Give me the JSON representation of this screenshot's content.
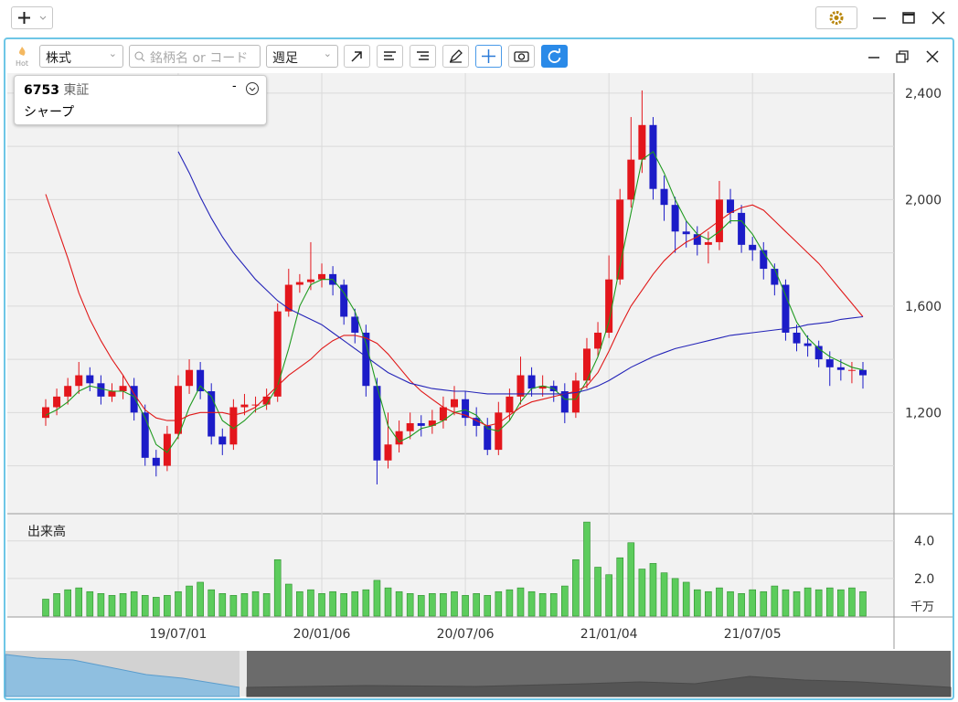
{
  "toolbar": {
    "hot": "Hot",
    "market": "株式",
    "search_placeholder": "銘柄名 or コード",
    "period": "週足"
  },
  "info": {
    "code": "6753",
    "exchange": "東証",
    "name": "シャープ",
    "dash": "-"
  },
  "chart_data": {
    "type": "candlestick",
    "categories": [
      null,
      null,
      null,
      null,
      null,
      null,
      null,
      null,
      null,
      null,
      null,
      null,
      "19/07/01",
      null,
      null,
      null,
      null,
      null,
      null,
      null,
      null,
      null,
      null,
      null,
      null,
      "20/01/06",
      null,
      null,
      null,
      null,
      null,
      null,
      null,
      null,
      null,
      null,
      null,
      null,
      "20/07/06",
      null,
      null,
      null,
      null,
      null,
      null,
      null,
      null,
      null,
      null,
      null,
      null,
      "21/01/04",
      null,
      null,
      null,
      null,
      null,
      null,
      null,
      null,
      null,
      null,
      null,
      null,
      "21/07/05",
      null,
      null,
      null,
      null,
      null,
      null,
      null,
      null,
      null,
      null
    ],
    "open": [
      1180,
      1220,
      1260,
      1300,
      1340,
      1310,
      1260,
      1280,
      1300,
      1200,
      1030,
      1000,
      1120,
      1300,
      1360,
      1280,
      1110,
      1080,
      1220,
      1230,
      1230,
      1260,
      1580,
      1680,
      1690,
      1700,
      1720,
      1680,
      1560,
      1500,
      1300,
      1020,
      1080,
      1130,
      1160,
      1150,
      1170,
      1220,
      1250,
      1180,
      1150,
      1060,
      1200,
      1260,
      1340,
      1290,
      1300,
      1280,
      1200,
      1320,
      1440,
      1500,
      1700,
      2000,
      2150,
      2280,
      2040,
      1980,
      1880,
      1870,
      1830,
      1840,
      2000,
      1950,
      1830,
      1810,
      1740,
      1680,
      1500,
      1460,
      1450,
      1400,
      1370,
      1360,
      1360
    ],
    "high": [
      1250,
      1290,
      1330,
      1390,
      1370,
      1340,
      1310,
      1340,
      1330,
      1230,
      1060,
      1150,
      1340,
      1400,
      1390,
      1310,
      1140,
      1250,
      1270,
      1260,
      1290,
      1610,
      1740,
      1720,
      1840,
      1760,
      1750,
      1700,
      1590,
      1530,
      1330,
      1200,
      1170,
      1200,
      1190,
      1210,
      1260,
      1300,
      1280,
      1220,
      1180,
      1240,
      1290,
      1410,
      1370,
      1340,
      1320,
      1310,
      1350,
      1480,
      1540,
      1790,
      2040,
      2310,
      2410,
      2310,
      2090,
      2010,
      1920,
      1900,
      1880,
      2070,
      2040,
      1980,
      1860,
      1840,
      1760,
      1700,
      1530,
      1490,
      1470,
      1430,
      1400,
      1390,
      1390
    ],
    "low": [
      1150,
      1190,
      1230,
      1270,
      1280,
      1230,
      1240,
      1250,
      1170,
      1000,
      960,
      980,
      1100,
      1270,
      1250,
      1080,
      1040,
      1060,
      1190,
      1200,
      1210,
      1240,
      1560,
      1650,
      1660,
      1670,
      1640,
      1530,
      1460,
      1260,
      930,
      990,
      1050,
      1100,
      1110,
      1120,
      1140,
      1190,
      1150,
      1110,
      1040,
      1040,
      1170,
      1230,
      1260,
      1260,
      1240,
      1160,
      1180,
      1290,
      1410,
      1480,
      1680,
      1970,
      2100,
      2000,
      1920,
      1800,
      1820,
      1790,
      1760,
      1810,
      1910,
      1800,
      1770,
      1700,
      1640,
      1470,
      1430,
      1410,
      1370,
      1300,
      1320,
      1310,
      1290
    ],
    "close": [
      1220,
      1260,
      1300,
      1340,
      1310,
      1260,
      1280,
      1300,
      1200,
      1030,
      1000,
      1120,
      1300,
      1360,
      1280,
      1110,
      1080,
      1220,
      1230,
      1230,
      1260,
      1580,
      1680,
      1690,
      1700,
      1720,
      1680,
      1560,
      1500,
      1300,
      1020,
      1080,
      1130,
      1160,
      1150,
      1170,
      1220,
      1250,
      1180,
      1150,
      1060,
      1200,
      1260,
      1340,
      1290,
      1300,
      1280,
      1200,
      1320,
      1440,
      1500,
      1700,
      2000,
      2150,
      2280,
      2040,
      1980,
      1880,
      1870,
      1830,
      1840,
      2000,
      1950,
      1830,
      1810,
      1740,
      1680,
      1500,
      1460,
      1450,
      1400,
      1370,
      1360,
      1360,
      1340
    ],
    "up_color": "#e3161c",
    "down_color": "#1c1cc8",
    "ylim": [
      820,
      2475
    ],
    "yticks": [
      {
        "value": 1200,
        "label": "1,200"
      },
      {
        "value": 1600,
        "label": "1,600"
      },
      {
        "value": 2000,
        "label": "2,000"
      },
      {
        "value": 2400,
        "label": "2,400"
      }
    ],
    "minor_yticks": [
      1000,
      1400,
      1800,
      2200
    ],
    "grid": true,
    "moving_averages": [
      {
        "color": "#1f9a1f",
        "values": [
          1190,
          1210,
          1240,
          1280,
          1300,
          1290,
          1280,
          1280,
          1260,
          1180,
          1080,
          1050,
          1110,
          1220,
          1300,
          1260,
          1170,
          1140,
          1170,
          1210,
          1230,
          1300,
          1440,
          1600,
          1680,
          1700,
          1700,
          1650,
          1580,
          1460,
          1300,
          1150,
          1090,
          1110,
          1140,
          1150,
          1170,
          1200,
          1210,
          1190,
          1140,
          1130,
          1170,
          1240,
          1290,
          1300,
          1290,
          1250,
          1250,
          1320,
          1410,
          1540,
          1750,
          1950,
          2150,
          2180,
          2100,
          2000,
          1920,
          1870,
          1850,
          1880,
          1920,
          1920,
          1870,
          1800,
          1740,
          1640,
          1540,
          1480,
          1440,
          1410,
          1390,
          1370,
          1360
        ]
      },
      {
        "color": "#e01818",
        "values": [
          2020,
          1900,
          1780,
          1650,
          1550,
          1470,
          1400,
          1340,
          1270,
          1210,
          1180,
          1170,
          1170,
          1190,
          1200,
          1200,
          1200,
          1190,
          1200,
          1220,
          1260,
          1300,
          1340,
          1370,
          1400,
          1440,
          1470,
          1490,
          1490,
          1480,
          1460,
          1420,
          1370,
          1320,
          1280,
          1250,
          1220,
          1200,
          1190,
          1170,
          1150,
          1160,
          1190,
          1220,
          1240,
          1250,
          1260,
          1270,
          1280,
          1300,
          1350,
          1430,
          1520,
          1600,
          1660,
          1720,
          1770,
          1810,
          1840,
          1860,
          1890,
          1920,
          1950,
          1970,
          1980,
          1960,
          1920,
          1880,
          1840,
          1800,
          1760,
          1710,
          1660,
          1610,
          1560
        ]
      },
      {
        "color": "#2424b8",
        "values": [
          null,
          null,
          null,
          null,
          null,
          null,
          null,
          null,
          null,
          null,
          null,
          null,
          2180,
          2100,
          2010,
          1930,
          1860,
          1800,
          1750,
          1700,
          1660,
          1620,
          1590,
          1570,
          1550,
          1530,
          1500,
          1470,
          1440,
          1410,
          1380,
          1350,
          1330,
          1310,
          1300,
          1290,
          1285,
          1280,
          1280,
          1275,
          1270,
          1270,
          1270,
          1270,
          1270,
          1270,
          1270,
          1270,
          1275,
          1285,
          1300,
          1320,
          1345,
          1370,
          1390,
          1410,
          1425,
          1440,
          1450,
          1460,
          1470,
          1480,
          1490,
          1495,
          1500,
          1505,
          1510,
          1515,
          1520,
          1530,
          1535,
          1540,
          1550,
          1555,
          1560
        ]
      }
    ],
    "volume": {
      "title": "出来高",
      "unit": "千万",
      "color": "#5ccc5c",
      "values": [
        0.9,
        1.2,
        1.4,
        1.5,
        1.3,
        1.2,
        1.1,
        1.2,
        1.3,
        1.1,
        1.0,
        1.1,
        1.3,
        1.6,
        1.8,
        1.4,
        1.2,
        1.1,
        1.2,
        1.3,
        1.2,
        3.0,
        1.7,
        1.3,
        1.4,
        1.2,
        1.3,
        1.2,
        1.3,
        1.4,
        1.9,
        1.5,
        1.3,
        1.2,
        1.1,
        1.2,
        1.2,
        1.3,
        1.1,
        1.2,
        1.1,
        1.3,
        1.4,
        1.5,
        1.3,
        1.2,
        1.2,
        1.6,
        3.0,
        5.0,
        2.6,
        2.2,
        3.1,
        3.9,
        2.5,
        2.8,
        2.3,
        2.0,
        1.8,
        1.4,
        1.3,
        1.5,
        1.3,
        1.2,
        1.4,
        1.3,
        1.6,
        1.4,
        1.3,
        1.5,
        1.4,
        1.5,
        1.4,
        1.5,
        1.3
      ],
      "ylim": [
        0,
        5.2
      ],
      "yticks": [
        {
          "value": 2,
          "label": "2.0"
        },
        {
          "value": 4,
          "label": "4.0"
        }
      ]
    }
  }
}
